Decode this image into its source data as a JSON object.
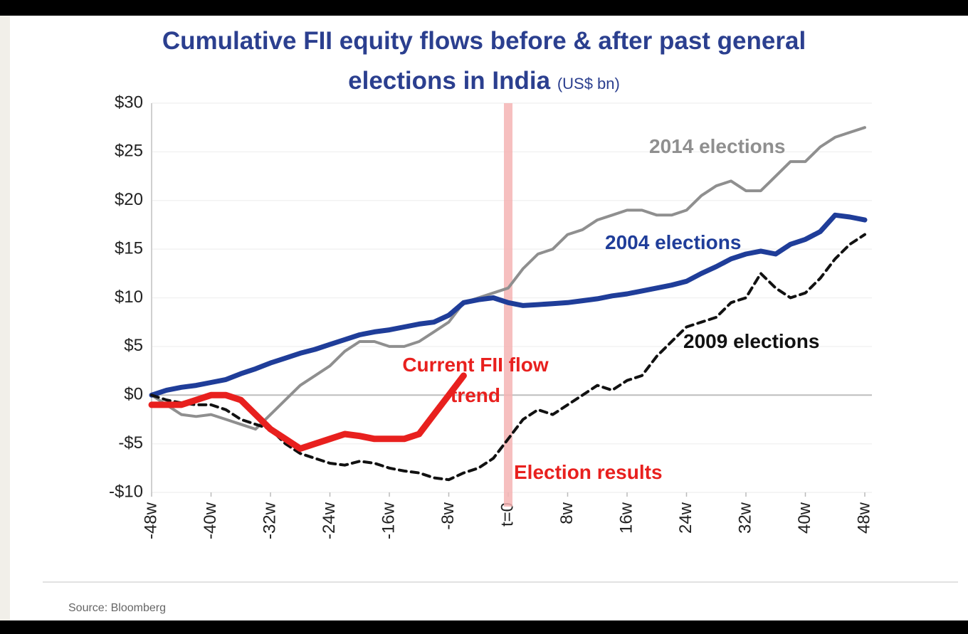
{
  "chart_data": {
    "type": "line",
    "title": "Cumulative FII equity flows before & after past general elections in India",
    "subtitle": "(US$ bn)",
    "source": "Source: Bloomberg",
    "annotations": [
      "Election results"
    ],
    "highlight_x": 0,
    "highlight_color": "#f4b4b4",
    "x": [
      -48,
      -46,
      -44,
      -42,
      -40,
      -38,
      -36,
      -34,
      -32,
      -30,
      -28,
      -26,
      -24,
      -22,
      -20,
      -18,
      -16,
      -14,
      -12,
      -10,
      -8,
      -6,
      -4,
      -2,
      0,
      2,
      4,
      6,
      8,
      10,
      12,
      14,
      16,
      18,
      20,
      22,
      24,
      26,
      28,
      30,
      32,
      34,
      36,
      38,
      40,
      42,
      44,
      46,
      48
    ],
    "xlim": [
      -48,
      48
    ],
    "xticks": [
      {
        "value": -48,
        "label": "-48w"
      },
      {
        "value": -40,
        "label": "-40w"
      },
      {
        "value": -32,
        "label": "-32w"
      },
      {
        "value": -24,
        "label": "-24w"
      },
      {
        "value": -16,
        "label": "-16w"
      },
      {
        "value": -8,
        "label": "-8w"
      },
      {
        "value": 0,
        "label": "t=0"
      },
      {
        "value": 8,
        "label": "8w"
      },
      {
        "value": 16,
        "label": "16w"
      },
      {
        "value": 24,
        "label": "24w"
      },
      {
        "value": 32,
        "label": "32w"
      },
      {
        "value": 40,
        "label": "40w"
      },
      {
        "value": 48,
        "label": "48w"
      }
    ],
    "ylim": [
      -10,
      30
    ],
    "yticks": [
      {
        "value": 30,
        "label": "$30"
      },
      {
        "value": 25,
        "label": "$25"
      },
      {
        "value": 20,
        "label": "$20"
      },
      {
        "value": 15,
        "label": "$15"
      },
      {
        "value": 10,
        "label": "$10"
      },
      {
        "value": 5,
        "label": "$5"
      },
      {
        "value": 0,
        "label": "$0"
      },
      {
        "value": -5,
        "label": "-$5"
      },
      {
        "value": -10,
        "label": "-$10"
      }
    ],
    "grid": true,
    "series": [
      {
        "name": "2014 elections",
        "color": "#8f8f8f",
        "values": [
          0,
          -1,
          -2,
          -2.2,
          -2,
          -2.5,
          -3,
          -3.5,
          -2,
          -0.5,
          1,
          2,
          3,
          4.5,
          5.5,
          5.5,
          5,
          5,
          5.5,
          6.5,
          7.5,
          9.5,
          10,
          10.5,
          11,
          13,
          14.5,
          15,
          16.5,
          17,
          18,
          18.5,
          19,
          19,
          18.5,
          18.5,
          19,
          20.5,
          21.5,
          22,
          21,
          21,
          22.5,
          24,
          24,
          25.5,
          26.5,
          27,
          27.5
        ]
      },
      {
        "name": "2004 elections",
        "color": "#1f3d99",
        "values": [
          0,
          0.5,
          0.8,
          1,
          1.3,
          1.6,
          2.2,
          2.7,
          3.3,
          3.8,
          4.3,
          4.7,
          5.2,
          5.7,
          6.2,
          6.5,
          6.7,
          7,
          7.3,
          7.5,
          8.2,
          9.5,
          9.8,
          10,
          9.5,
          9.2,
          9.3,
          9.4,
          9.5,
          9.7,
          9.9,
          10.2,
          10.4,
          10.7,
          11,
          11.3,
          11.7,
          12.5,
          13.2,
          14,
          14.5,
          14.8,
          14.5,
          15.5,
          16,
          16.8,
          18.5,
          18.3,
          18
        ]
      },
      {
        "name": "2009 elections",
        "color": "#111111",
        "dashed": true,
        "values": [
          0,
          -0.5,
          -0.8,
          -1,
          -1,
          -1.5,
          -2.5,
          -3,
          -3.5,
          -5,
          -6,
          -6.5,
          -7,
          -7.2,
          -6.8,
          -7,
          -7.5,
          -7.8,
          -8,
          -8.5,
          -8.7,
          -8,
          -7.5,
          -6.5,
          -4.5,
          -2.5,
          -1.5,
          -2,
          -1,
          0,
          1,
          0.5,
          1.5,
          2,
          4,
          5.5,
          7,
          7.5,
          8,
          9.5,
          10,
          12.5,
          11,
          10,
          10.5,
          12,
          14,
          15.5,
          16.5
        ]
      },
      {
        "name": "Current FII flow trend",
        "color": "#e8201e",
        "values": [
          -1,
          -1,
          -1,
          -0.5,
          0,
          0,
          -0.5,
          -2,
          -3.5,
          -4.5,
          -5.5,
          -5,
          -4.5,
          -4,
          -4.2,
          -4.5,
          -4.5,
          -4.5,
          -4,
          -2,
          0,
          2,
          null,
          null,
          null,
          null,
          null,
          null,
          null,
          null,
          null,
          null,
          null,
          null,
          null,
          null,
          null,
          null,
          null,
          null,
          null,
          null,
          null,
          null,
          null,
          null,
          null,
          null,
          null
        ]
      }
    ]
  }
}
